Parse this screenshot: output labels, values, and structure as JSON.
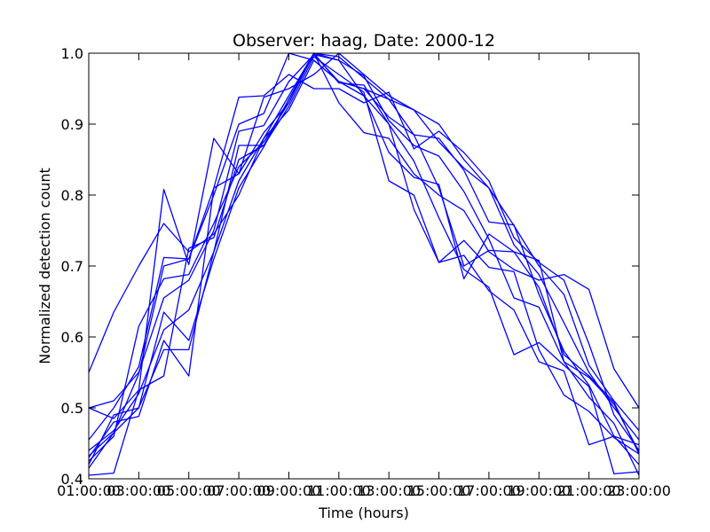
{
  "chart_data": {
    "type": "line",
    "title": "Observer: haag, Date: 2000-12",
    "xlabel": "Time (hours)",
    "ylabel": "Normalized detection count",
    "x_ticks": [
      "01:00:00",
      "03:00:00",
      "05:00:00",
      "07:00:00",
      "09:00:00",
      "11:00:00",
      "13:00:00",
      "15:00:00",
      "17:00:00",
      "19:00:00",
      "21:00:00",
      "23:00:00"
    ],
    "x_ticks_overlap": [
      "03",
      "05",
      "07",
      "09",
      "11",
      "13",
      "15",
      "17",
      "19",
      "21",
      "23"
    ],
    "y_ticks": [
      "0.4",
      "0.5",
      "0.6",
      "0.7",
      "0.8",
      "0.9",
      "1.0"
    ],
    "ylim": [
      0.4,
      1.0
    ],
    "xlim": [
      1,
      23
    ],
    "grid": false,
    "line_color": "#0000ff",
    "series": [
      {
        "x": [
          1,
          2,
          3,
          4,
          5,
          6,
          7,
          8,
          9,
          10,
          11,
          12,
          13,
          14,
          15,
          16,
          17,
          18,
          19,
          20,
          21,
          22,
          23
        ],
        "values": [
          0.55,
          0.635,
          0.7,
          0.76,
          0.72,
          0.745,
          0.8,
          0.88,
          0.94,
          1.0,
          0.93,
          0.888,
          0.88,
          0.83,
          0.8,
          0.778,
          0.72,
          0.695,
          0.68,
          0.688,
          0.667,
          0.555,
          0.5
        ]
      },
      {
        "x": [
          1,
          2,
          3,
          4,
          5,
          6,
          7,
          8,
          9,
          10,
          11,
          12,
          13,
          14,
          15,
          16,
          17,
          18,
          19,
          20,
          21,
          22,
          23
        ],
        "values": [
          0.5,
          0.485,
          0.525,
          0.808,
          0.702,
          0.88,
          0.83,
          0.938,
          0.95,
          0.97,
          1.0,
          0.97,
          0.94,
          0.92,
          0.9,
          0.85,
          0.81,
          0.757,
          0.7,
          0.66,
          0.56,
          0.51,
          0.468
        ]
      },
      {
        "x": [
          1,
          2,
          3,
          4,
          5,
          6,
          7,
          8,
          9,
          10,
          11,
          12,
          13,
          14,
          15,
          16,
          17,
          18,
          19,
          20,
          21,
          22,
          23
        ],
        "values": [
          0.455,
          0.5,
          0.558,
          0.712,
          0.71,
          0.81,
          0.938,
          0.94,
          0.97,
          0.95,
          0.95,
          0.93,
          0.945,
          0.865,
          0.89,
          0.86,
          0.82,
          0.74,
          0.705,
          0.68,
          0.59,
          0.49,
          0.44
        ]
      },
      {
        "x": [
          1,
          2,
          3,
          4,
          5,
          6,
          7,
          8,
          9,
          10,
          11,
          12,
          13,
          14,
          15,
          16,
          17,
          18,
          19,
          20,
          21,
          22,
          23
        ],
        "values": [
          0.432,
          0.465,
          0.548,
          0.7,
          0.71,
          0.8,
          0.9,
          0.915,
          1.0,
          0.99,
          0.96,
          0.95,
          0.935,
          0.92,
          0.875,
          0.838,
          0.81,
          0.73,
          0.688,
          0.62,
          0.55,
          0.5,
          0.455
        ]
      },
      {
        "x": [
          1,
          2,
          3,
          4,
          5,
          6,
          7,
          8,
          9,
          10,
          11,
          12,
          13,
          14,
          15,
          16,
          17,
          18,
          19,
          20,
          21,
          22,
          23
        ],
        "values": [
          0.5,
          0.51,
          0.55,
          0.655,
          0.68,
          0.75,
          0.89,
          0.898,
          0.96,
          0.998,
          0.96,
          0.95,
          0.91,
          0.885,
          0.88,
          0.835,
          0.762,
          0.758,
          0.66,
          0.58,
          0.532,
          0.46,
          0.448
        ]
      },
      {
        "x": [
          1,
          2,
          3,
          4,
          5,
          6,
          7,
          8,
          9,
          10,
          11,
          12,
          13,
          14,
          15,
          16,
          17,
          18,
          19,
          20,
          21,
          22,
          23
        ],
        "values": [
          0.425,
          0.46,
          0.615,
          0.682,
          0.688,
          0.76,
          0.84,
          0.875,
          0.93,
          1.0,
          0.995,
          0.965,
          0.935,
          0.885,
          0.81,
          0.7,
          0.722,
          0.72,
          0.67,
          0.575,
          0.545,
          0.508,
          0.435
        ]
      },
      {
        "x": [
          1,
          2,
          3,
          4,
          5,
          6,
          7,
          8,
          9,
          10,
          11,
          12,
          13,
          14,
          15,
          16,
          17,
          18,
          19,
          20,
          21,
          22,
          23
        ],
        "values": [
          0.44,
          0.468,
          0.52,
          0.61,
          0.638,
          0.72,
          0.87,
          0.87,
          0.935,
          1.0,
          0.99,
          0.94,
          0.86,
          0.825,
          0.815,
          0.682,
          0.745,
          0.72,
          0.708,
          0.565,
          0.543,
          0.505,
          0.438
        ]
      },
      {
        "x": [
          1,
          2,
          3,
          4,
          5,
          6,
          7,
          8,
          9,
          10,
          11,
          12,
          13,
          14,
          15,
          16,
          17,
          18,
          19,
          20,
          21,
          22,
          23
        ],
        "values": [
          0.405,
          0.408,
          0.525,
          0.545,
          0.725,
          0.74,
          0.85,
          0.87,
          0.925,
          0.995,
          0.97,
          0.945,
          0.82,
          0.8,
          0.705,
          0.715,
          0.665,
          0.638,
          0.565,
          0.552,
          0.448,
          0.46,
          0.42
        ]
      },
      {
        "x": [
          1,
          2,
          3,
          4,
          5,
          6,
          7,
          8,
          9,
          10,
          11,
          12,
          13,
          14,
          15,
          16,
          17,
          18,
          19,
          20,
          21,
          22,
          23
        ],
        "values": [
          0.43,
          0.48,
          0.488,
          0.595,
          0.545,
          0.81,
          0.83,
          0.888,
          0.93,
          1.0,
          0.958,
          0.955,
          0.9,
          0.78,
          0.705,
          0.736,
          0.698,
          0.692,
          0.582,
          0.518,
          0.495,
          0.458,
          0.435
        ]
      },
      {
        "x": [
          1,
          2,
          3,
          4,
          5,
          6,
          7,
          8,
          9,
          10,
          11,
          12,
          13,
          14,
          15,
          16,
          17,
          18,
          19,
          20,
          21,
          22,
          23
        ],
        "values": [
          0.415,
          0.465,
          0.5,
          0.582,
          0.582,
          0.72,
          0.82,
          0.88,
          0.92,
          0.99,
          0.96,
          0.94,
          0.9,
          0.848,
          0.768,
          0.695,
          0.67,
          0.575,
          0.592,
          0.56,
          0.53,
          0.407,
          0.41
        ]
      },
      {
        "x": [
          1,
          2,
          3,
          4,
          5,
          6,
          7,
          8,
          9,
          10,
          11,
          12,
          13,
          14,
          15,
          16,
          17,
          18,
          19,
          20,
          21,
          22,
          23
        ],
        "values": [
          0.42,
          0.49,
          0.5,
          0.635,
          0.595,
          0.71,
          0.81,
          0.868,
          0.935,
          0.998,
          0.99,
          0.968,
          0.905,
          0.87,
          0.855,
          0.805,
          0.738,
          0.655,
          0.642,
          0.565,
          0.515,
          0.478,
          0.405
        ]
      }
    ]
  }
}
